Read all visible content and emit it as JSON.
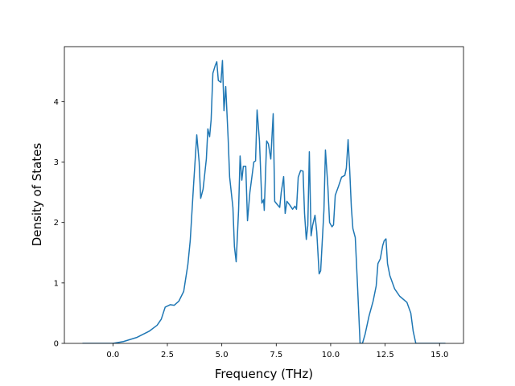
{
  "chart_data": {
    "type": "line",
    "xlabel": "Frequency (THz)",
    "ylabel": "Density of States",
    "series": [
      {
        "color": "#1f77b4",
        "x": [
          -1.4,
          0,
          0.48,
          1.11,
          1.66,
          2.03,
          2.22,
          2.4,
          2.63,
          2.81,
          3.03,
          3.25,
          3.44,
          3.55,
          3.7,
          3.85,
          3.96,
          4.03,
          4.14,
          4.29,
          4.36,
          4.44,
          4.51,
          4.59,
          4.7,
          4.77,
          4.84,
          4.96,
          5.03,
          5.1,
          5.18,
          5.29,
          5.36,
          5.51,
          5.58,
          5.66,
          5.77,
          5.84,
          5.92,
          5.99,
          6.1,
          6.18,
          6.29,
          6.47,
          6.55,
          6.62,
          6.73,
          6.84,
          6.92,
          6.95,
          7.06,
          7.14,
          7.25,
          7.36,
          7.43,
          7.54,
          7.66,
          7.73,
          7.84,
          7.91,
          7.99,
          8.14,
          8.25,
          8.36,
          8.43,
          8.51,
          8.62,
          8.73,
          8.8,
          8.88,
          8.95,
          9.02,
          9.1,
          9.17,
          9.28,
          9.36,
          9.47,
          9.54,
          9.69,
          9.76,
          9.87,
          9.95,
          10.06,
          10.13,
          10.21,
          10.36,
          10.5,
          10.65,
          10.72,
          10.8,
          10.87,
          10.95,
          11.02,
          11.13,
          11.24,
          11.35,
          11.46,
          11.58,
          11.76,
          11.95,
          12.09,
          12.17,
          12.28,
          12.39,
          12.46,
          12.54,
          12.61,
          12.72,
          12.94,
          13.17,
          13.5,
          13.68,
          13.79,
          13.91,
          14.42,
          15.27
        ],
        "values": [
          0,
          0,
          0.03,
          0.1,
          0.2,
          0.3,
          0.4,
          0.6,
          0.64,
          0.63,
          0.7,
          0.86,
          1.3,
          1.7,
          2.6,
          3.45,
          3.0,
          2.4,
          2.55,
          3.05,
          3.55,
          3.42,
          3.7,
          4.47,
          4.6,
          4.66,
          4.35,
          4.32,
          4.68,
          3.85,
          4.25,
          3.4,
          2.75,
          2.25,
          1.6,
          1.35,
          2.2,
          3.1,
          2.7,
          2.93,
          2.93,
          2.03,
          2.5,
          3.0,
          3.02,
          3.86,
          3.35,
          2.32,
          2.38,
          2.2,
          3.35,
          3.3,
          3.05,
          3.8,
          2.35,
          2.3,
          2.25,
          2.5,
          2.76,
          2.15,
          2.35,
          2.28,
          2.22,
          2.27,
          2.22,
          2.75,
          2.86,
          2.85,
          2.15,
          1.72,
          1.95,
          3.17,
          1.78,
          1.95,
          2.12,
          1.85,
          1.15,
          1.2,
          2.2,
          3.2,
          2.6,
          2.0,
          1.93,
          1.96,
          2.45,
          2.6,
          2.75,
          2.78,
          2.9,
          3.37,
          2.9,
          2.25,
          1.9,
          1.75,
          0.9,
          0,
          0,
          0.15,
          0.45,
          0.7,
          0.95,
          1.32,
          1.4,
          1.62,
          1.7,
          1.73,
          1.32,
          1.12,
          0.9,
          0.78,
          0.68,
          0.5,
          0.2,
          0,
          0,
          0
        ]
      }
    ],
    "xlim": [
      -2.23,
      16.1
    ],
    "ylim": [
      0,
      4.91
    ],
    "xticks": [
      {
        "value": 0,
        "label": "0.0"
      },
      2.5,
      {
        "value": 5,
        "label": "5.0"
      },
      7.5,
      {
        "value": 10,
        "label": "10.0"
      },
      12.5,
      {
        "value": 15,
        "label": "15.0"
      }
    ],
    "yticks": [
      0,
      1,
      2,
      3,
      4
    ],
    "grid": false
  }
}
